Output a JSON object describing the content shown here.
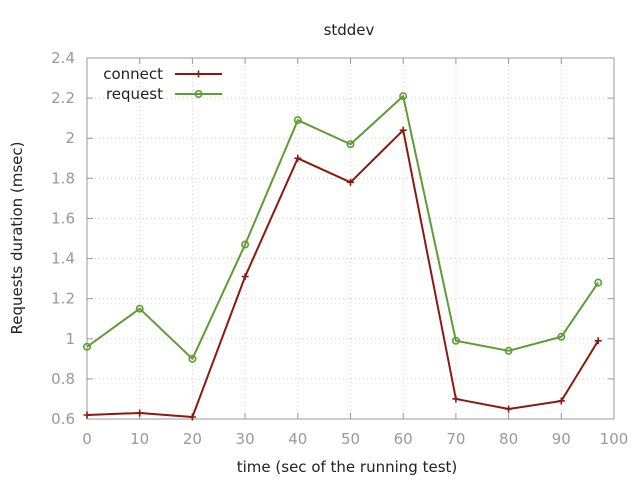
{
  "chart_data": {
    "type": "line",
    "title": "stddev",
    "xlabel": "time (sec of the running test)",
    "ylabel": "Requests duration (msec)",
    "xlim": [
      0,
      100
    ],
    "ylim": [
      0.6,
      2.4
    ],
    "x_ticks": [
      0,
      10,
      20,
      30,
      40,
      50,
      60,
      70,
      80,
      90,
      100
    ],
    "y_ticks": [
      0.6,
      0.8,
      1,
      1.2,
      1.4,
      1.6,
      1.8,
      2,
      2.2,
      2.4
    ],
    "x_tick_labels": [
      "0",
      "10",
      "20",
      "30",
      "40",
      "50",
      "60",
      "70",
      "80",
      "90",
      "100"
    ],
    "y_tick_labels": [
      "0.6",
      "0.8",
      "1",
      "1.2",
      "1.4",
      "1.6",
      "1.8",
      "2",
      "2.2",
      "2.4"
    ],
    "grid": true,
    "legend_position": "top-left",
    "series": [
      {
        "name": "connect",
        "color": "#8b1a0e",
        "marker": "plus",
        "x": [
          0,
          10,
          20,
          30,
          40,
          50,
          60,
          70,
          80,
          90,
          97
        ],
        "y": [
          0.62,
          0.63,
          0.61,
          1.31,
          1.9,
          1.78,
          2.04,
          0.7,
          0.65,
          0.69,
          0.99
        ]
      },
      {
        "name": "request",
        "color": "#5e9c36",
        "marker": "circle",
        "x": [
          0,
          10,
          20,
          30,
          40,
          50,
          60,
          70,
          80,
          90,
          97
        ],
        "y": [
          0.96,
          1.15,
          0.9,
          1.47,
          2.09,
          1.97,
          2.21,
          0.99,
          0.94,
          1.01,
          1.28
        ]
      }
    ]
  }
}
